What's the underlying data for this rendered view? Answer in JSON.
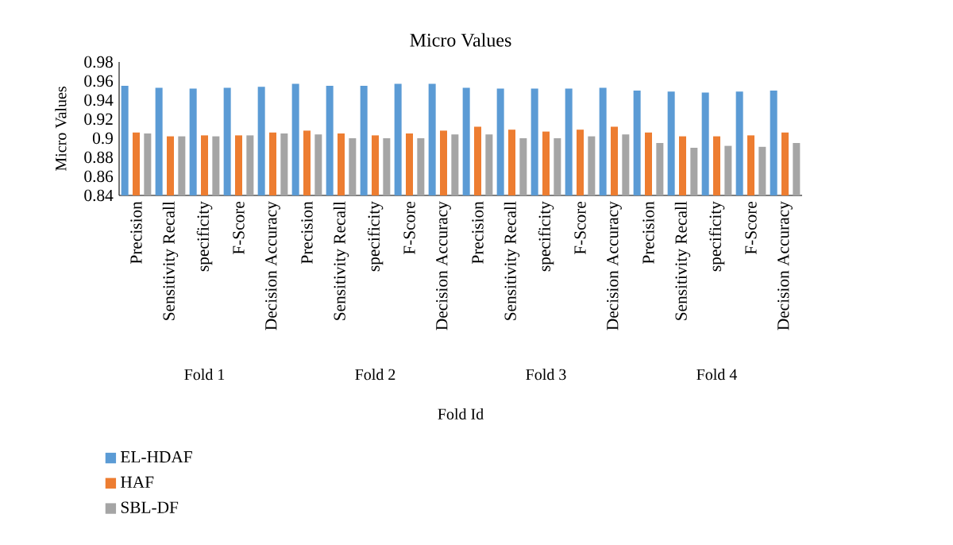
{
  "chart_data": {
    "type": "bar",
    "title": "Micro Values",
    "xlabel": "Fold Id",
    "ylabel": "Micro Values",
    "categories": [
      "Precision",
      "Sensitivity Recall",
      "specificity",
      "F-Score",
      "Decision Accuracy",
      "Precision",
      "Sensitivity Recall",
      "specificity",
      "F-Score",
      "Decision Accuracy",
      "Precision",
      "Sensitivity Recall",
      "specificity",
      "F-Score",
      "Decision Accuracy",
      "Precision",
      "Sensitivity Recall",
      "specificity",
      "F-Score",
      "Decision Accuracy"
    ],
    "annotations": [
      "Fold 1",
      "Fold 2",
      "Fold 3",
      "Fold 4"
    ],
    "series": [
      {
        "name": "EL-HDAF",
        "color": "#5b9bd5",
        "values": [
          0.955,
          0.953,
          0.952,
          0.953,
          0.954,
          0.957,
          0.955,
          0.955,
          0.957,
          0.957,
          0.953,
          0.952,
          0.952,
          0.952,
          0.953,
          0.95,
          0.949,
          0.948,
          0.949,
          0.95
        ]
      },
      {
        "name": "HAF",
        "color": "#ed7d31",
        "values": [
          0.906,
          0.902,
          0.903,
          0.903,
          0.906,
          0.908,
          0.905,
          0.903,
          0.905,
          0.908,
          0.912,
          0.909,
          0.907,
          0.909,
          0.912,
          0.906,
          0.902,
          0.902,
          0.903,
          0.906
        ]
      },
      {
        "name": "SBL-DF",
        "color": "#a5a5a5",
        "values": [
          0.905,
          0.902,
          0.902,
          0.903,
          0.905,
          0.904,
          0.9,
          0.9,
          0.9,
          0.904,
          0.904,
          0.9,
          0.9,
          0.902,
          0.904,
          0.895,
          0.89,
          0.892,
          0.891,
          0.895
        ]
      }
    ],
    "ylim": [
      0.84,
      0.98
    ],
    "yticks": [
      0.84,
      0.86,
      0.88,
      0.9,
      0.92,
      0.94,
      0.96,
      0.98
    ],
    "grid": false,
    "legend": "bottom left"
  }
}
